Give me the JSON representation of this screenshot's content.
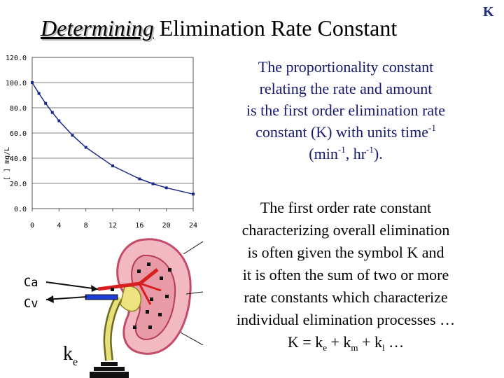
{
  "slide": {
    "title_italic": "Determining",
    "title_rest": " Elimination Rate Constant",
    "corner_label": "K",
    "paragraph1": {
      "line1": "The proportionality constant",
      "line2": "relating the rate and amount",
      "line3": "is the first order elimination rate",
      "line4a": "constant (K) with units time",
      "line4sup": "-1",
      "line5a": "(min",
      "line5sup1": "-1",
      "line5b": ", hr",
      "line5sup2": "-1",
      "line5c": ")."
    },
    "paragraph2": {
      "line1": "The first order rate constant",
      "line2": "characterizing overall elimination",
      "line3": "is often given the symbol K and",
      "line4": "it is often the sum of two or more",
      "line5": "rate constants which characterize",
      "line6": "individual elimination processes …",
      "eq_a": "K = k",
      "eq_sub1": "e",
      "eq_b": " + k",
      "eq_sub2": "m",
      "eq_c": " + k",
      "eq_sub3": "l",
      "eq_d": " …"
    }
  },
  "kidney_labels": {
    "ca": "Ca",
    "cv": "Cv",
    "ke_main": "k",
    "ke_sub": "e"
  },
  "chart_data": {
    "type": "line",
    "ylabel": "[ ] mg/L",
    "ylim": [
      0,
      120
    ],
    "xlim": [
      0,
      24
    ],
    "yticks": [
      "0.0",
      "20.0",
      "40.0",
      "60.0",
      "80.0",
      "100.0",
      "120.0"
    ],
    "xticks": [
      "0",
      "4",
      "8",
      "12",
      "16",
      "20",
      "24"
    ],
    "grid": true,
    "x": [
      0,
      1,
      2,
      3,
      4,
      6,
      8,
      12,
      16,
      18,
      20,
      24
    ],
    "y": [
      100,
      91.4,
      83.5,
      76.3,
      69.7,
      58.2,
      48.6,
      33.9,
      23.6,
      19.7,
      16.5,
      11.5
    ],
    "colors": {
      "line": "#1a2a8c",
      "marker": "#1a2a8c",
      "grid": "#555555"
    }
  }
}
